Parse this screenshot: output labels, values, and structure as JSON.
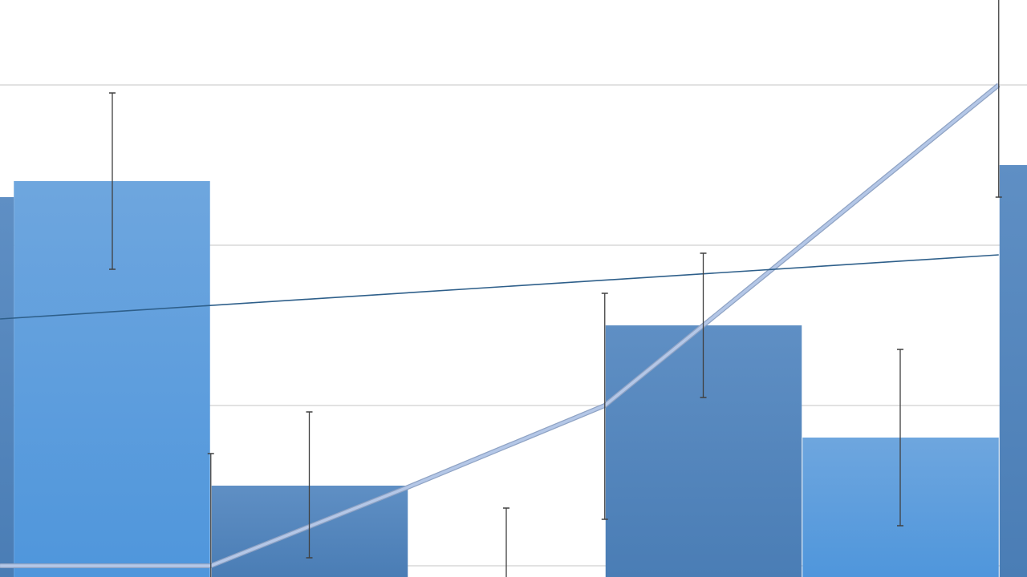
{
  "chart_data": {
    "type": "bar",
    "title": "",
    "xlabel": "",
    "ylabel": "",
    "grid": true,
    "gridlines": [
      1,
      2,
      3,
      4
    ],
    "categories": [
      "",
      "",
      "",
      "",
      "",
      "",
      ""
    ],
    "bars": [
      {
        "value": 3.3,
        "color": "#4f81bd"
      },
      {
        "value": 3.4,
        "color": "#5b9bd5"
      },
      {
        "value": 1.5,
        "color": "#4f81bd"
      },
      {
        "value": 0.9,
        "color": "#5b9bd5"
      },
      {
        "value": 2.5,
        "color": "#4f81bd"
      },
      {
        "value": 1.8,
        "color": "#6a9fd8"
      },
      {
        "value": 3.5,
        "color": "#4f81bd"
      }
    ],
    "error_bars": [
      {
        "x": 1,
        "low": 2.85,
        "high": 3.95
      },
      {
        "x": 1.5,
        "low": 0.8,
        "high": 1.7
      },
      {
        "x": 2,
        "low": 1.05,
        "high": 1.96
      },
      {
        "x": 3,
        "low": 0.45,
        "high": 1.36
      },
      {
        "x": 3.5,
        "low": 1.29,
        "high": 2.7
      },
      {
        "x": 4,
        "low": 2.05,
        "high": 2.95
      },
      {
        "x": 5,
        "low": 1.25,
        "high": 2.35
      },
      {
        "x": 5.5,
        "low": 3.3,
        "high": 4.6
      }
    ],
    "series": [
      {
        "type": "line",
        "color": "#b4c7e7",
        "points": [
          [
            0.43,
            1.0
          ],
          [
            1.5,
            1.0
          ],
          [
            2.5,
            1.49
          ],
          [
            3.5,
            2.0
          ],
          [
            4.5,
            3.0
          ],
          [
            5.5,
            4.0
          ]
        ]
      },
      {
        "type": "trendline",
        "color": "#2e5f8a",
        "points": [
          [
            0.43,
            2.54
          ],
          [
            5.5,
            2.94
          ]
        ]
      }
    ],
    "colors": {
      "grid": "#d9d9d9",
      "error_bar": "#404040"
    }
  }
}
